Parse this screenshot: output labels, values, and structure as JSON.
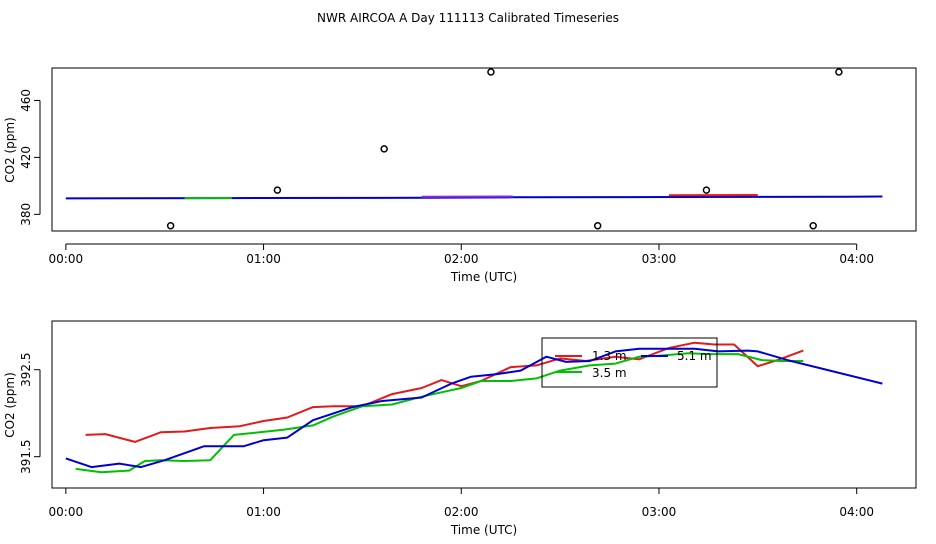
{
  "title": "NWR AIRCOA A  Day 111113  Calibrated Timeseries",
  "colors": {
    "red": "#e31a1c",
    "green": "#00c000",
    "blue": "#0000d0",
    "purple": "#8a2be2",
    "black": "#000000"
  },
  "chart_data": [
    {
      "type": "scatter",
      "name": "raw-timeseries",
      "xlabel": "Time (UTC)",
      "ylabel": "CO2 (ppm)",
      "xlim": [
        -0.07,
        4.3
      ],
      "ylim": [
        368.3,
        482.8
      ],
      "xticks": [
        0,
        1,
        2,
        3,
        4
      ],
      "xtick_labels": [
        "00:00",
        "01:00",
        "02:00",
        "03:00",
        "04:00"
      ],
      "yticks": [
        380,
        420,
        460
      ],
      "ytick_labels": [
        "380",
        "420",
        "460"
      ],
      "points": [
        {
          "x": 0.53,
          "y": 372
        },
        {
          "x": 1.07,
          "y": 397
        },
        {
          "x": 1.61,
          "y": 426
        },
        {
          "x": 2.15,
          "y": 480
        },
        {
          "x": 2.69,
          "y": 372
        },
        {
          "x": 3.24,
          "y": 397
        },
        {
          "x": 3.78,
          "y": 372
        },
        {
          "x": 3.91,
          "y": 480
        }
      ],
      "series": [
        {
          "name": "blue",
          "color": "#0000d0",
          "x": [
            0.0,
            0.83,
            1.8,
            2.26,
            3.1,
            3.95,
            4.13
          ],
          "y": [
            391.2,
            391.4,
            391.6,
            392.0,
            392.2,
            392.4,
            392.5
          ]
        },
        {
          "name": "green",
          "color": "#00c000",
          "x": [
            0.6,
            0.84
          ],
          "y": [
            391.4,
            391.5
          ]
        },
        {
          "name": "purple",
          "color": "#8a2be2",
          "x": [
            1.8,
            2.26
          ],
          "y": [
            392.4,
            392.5
          ]
        },
        {
          "name": "red",
          "color": "#e31a1c",
          "x": [
            3.05,
            3.5
          ],
          "y": [
            393.4,
            393.6
          ]
        }
      ]
    },
    {
      "type": "line",
      "name": "height-timeseries",
      "xlabel": "Time (UTC)",
      "ylabel": "CO2 (ppm)",
      "xlim": [
        -0.07,
        4.3
      ],
      "ylim": [
        391.14,
        393.06
      ],
      "xticks": [
        0,
        1,
        2,
        3,
        4
      ],
      "xtick_labels": [
        "00:00",
        "01:00",
        "02:00",
        "03:00",
        "04:00"
      ],
      "yticks": [
        391.5,
        392.5
      ],
      "ytick_labels": [
        "391.5",
        "392.5"
      ],
      "legend": {
        "entries": [
          {
            "label": "1.3 m",
            "color": "#e31a1c"
          },
          {
            "label": "5.1 m",
            "color": "#0000d0"
          },
          {
            "label": "3.5 m",
            "color": "#00c000"
          }
        ]
      },
      "series": [
        {
          "name": "1.3 m",
          "color": "#e31a1c",
          "x": [
            0.1,
            0.2,
            0.35,
            0.48,
            0.6,
            0.73,
            0.88,
            1.0,
            1.12,
            1.25,
            1.35,
            1.5,
            1.65,
            1.8,
            1.9,
            2.0,
            2.1,
            2.25,
            2.38,
            2.5,
            2.63,
            2.78,
            2.9,
            3.05,
            3.18,
            3.28,
            3.38,
            3.5,
            3.6,
            3.73
          ],
          "y": [
            391.75,
            391.76,
            391.67,
            391.78,
            391.79,
            391.83,
            391.85,
            391.91,
            391.95,
            392.07,
            392.08,
            392.08,
            392.22,
            392.29,
            392.38,
            392.31,
            392.37,
            392.53,
            392.55,
            392.63,
            392.6,
            392.65,
            392.62,
            392.75,
            392.81,
            392.79,
            392.79,
            392.54,
            392.61,
            392.72
          ]
        },
        {
          "name": "3.5 m",
          "color": "#00c000",
          "x": [
            0.05,
            0.18,
            0.32,
            0.4,
            0.48,
            0.6,
            0.73,
            0.85,
            0.98,
            1.1,
            1.25,
            1.35,
            1.5,
            1.65,
            1.8,
            1.9,
            2.0,
            2.1,
            2.25,
            2.38,
            2.5,
            2.65,
            2.78,
            2.9,
            3.0,
            3.15,
            3.25,
            3.4,
            3.52,
            3.62,
            3.73
          ],
          "y": [
            391.36,
            391.32,
            391.34,
            391.45,
            391.46,
            391.45,
            391.46,
            391.75,
            391.78,
            391.81,
            391.86,
            391.96,
            392.08,
            392.1,
            392.19,
            392.24,
            392.29,
            392.37,
            392.37,
            392.4,
            392.49,
            392.55,
            392.57,
            392.65,
            392.66,
            392.69,
            392.68,
            392.68,
            392.61,
            392.6,
            392.6
          ]
        },
        {
          "name": "5.1 m",
          "color": "#0000d0",
          "x": [
            0.0,
            0.13,
            0.27,
            0.38,
            0.5,
            0.7,
            0.9,
            1.0,
            1.12,
            1.25,
            1.45,
            1.6,
            1.8,
            1.95,
            2.05,
            2.18,
            2.3,
            2.43,
            2.53,
            2.65,
            2.78,
            2.9,
            3.05,
            3.18,
            3.3,
            3.45,
            3.5,
            3.65,
            4.13
          ],
          "y": [
            391.48,
            391.38,
            391.42,
            391.38,
            391.46,
            391.62,
            391.62,
            391.69,
            391.72,
            391.92,
            392.07,
            392.14,
            392.18,
            392.34,
            392.42,
            392.45,
            392.49,
            392.65,
            392.59,
            392.6,
            392.71,
            392.74,
            392.74,
            392.74,
            392.71,
            392.72,
            392.71,
            392.61,
            392.34
          ]
        }
      ]
    }
  ]
}
